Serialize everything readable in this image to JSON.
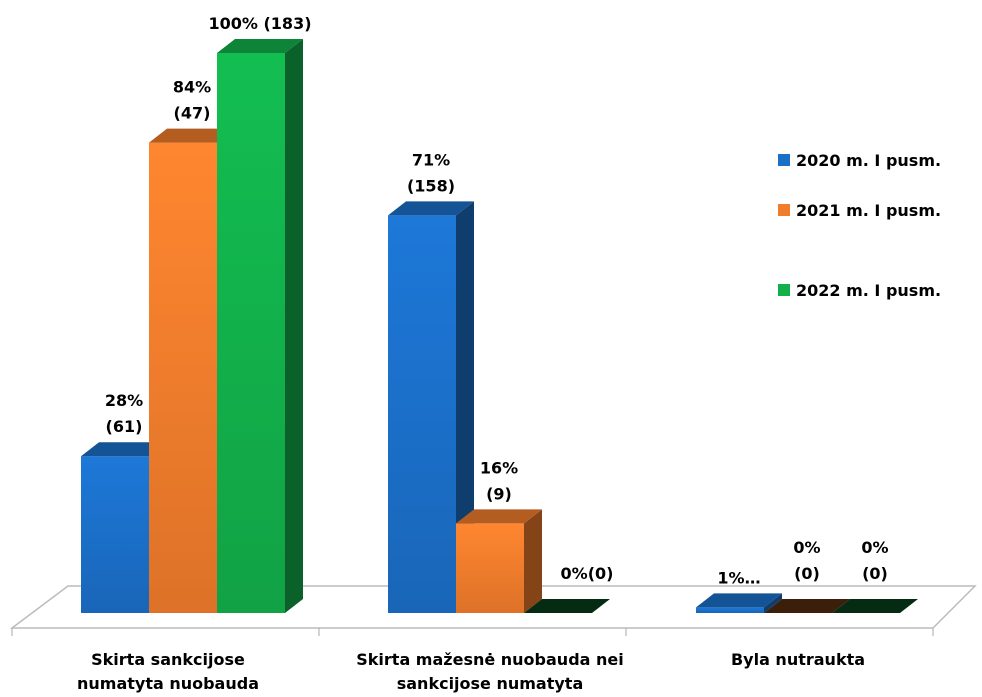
{
  "chart_data": {
    "type": "bar3d",
    "categories": [
      "Skirta sankcijose numatyta nuobauda",
      "Skirta mažesnė nuobauda nei sankcijose numatyta",
      "Byla nutraukta"
    ],
    "series": [
      {
        "name": "2020 m. I pusm.",
        "color": "#1b6fc8",
        "values": [
          28,
          71,
          1
        ],
        "value_labels": [
          [
            "28%",
            "(61)"
          ],
          [
            "71%",
            "(158)"
          ],
          [
            "1%…"
          ]
        ]
      },
      {
        "name": "2021 m. I pusm.",
        "color": "#f07c2c",
        "values": [
          84,
          16,
          0
        ],
        "value_labels": [
          [
            "84%",
            "(47)"
          ],
          [
            "16%",
            "(9)"
          ],
          [
            "0%",
            "(0)"
          ]
        ]
      },
      {
        "name": "2022 m. I pusm.",
        "color": "#12b04b",
        "values": [
          100,
          0,
          0
        ],
        "value_labels": [
          [
            "100% (183)"
          ],
          [
            "0%(0)"
          ],
          [
            "0%",
            "(0)"
          ]
        ]
      }
    ],
    "legend": "right"
  }
}
